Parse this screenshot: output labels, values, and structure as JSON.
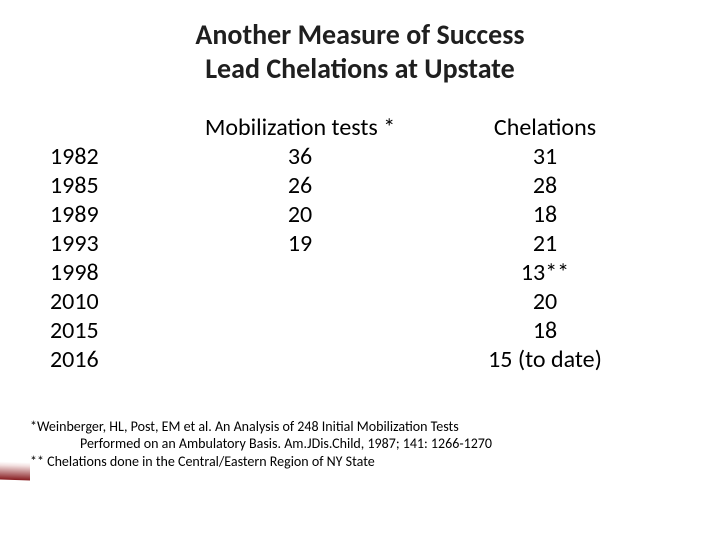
{
  "title": {
    "line1": "Another Measure of Success",
    "line2": "Lead Chelations at Upstate",
    "fontsize": 28,
    "color": "#1f1f1f"
  },
  "table": {
    "type": "table",
    "columns": [
      "",
      "Mobilization tests *",
      "Chelations"
    ],
    "rows": [
      [
        "1982",
        "36",
        "31"
      ],
      [
        "1985",
        "26",
        "28"
      ],
      [
        "1989",
        "20",
        "18"
      ],
      [
        "1993",
        "19",
        "21"
      ],
      [
        "1998",
        "",
        "13**"
      ],
      [
        "2010",
        "",
        "20"
      ],
      [
        "2015",
        "",
        "18"
      ],
      [
        "2016",
        "",
        "15 (to date)"
      ]
    ],
    "header_fontsize": 24,
    "body_fontsize": 24,
    "text_color": "#000000",
    "col_align": [
      "left",
      "center",
      "center"
    ]
  },
  "footnotes": {
    "line1": "*Weinberger, HL, Post, EM et al. An Analysis of 248 Initial Mobilization Tests",
    "line2": "Performed on an Ambulatory Basis. Am.JDis.Child, 1987; 141: 1266-1270",
    "line3": "** Chelations done in the Central/Eastern Region of NY State",
    "fontsize": 14,
    "color": "#000000"
  },
  "background_color": "#ffffff",
  "accent_color": "#861b1f"
}
